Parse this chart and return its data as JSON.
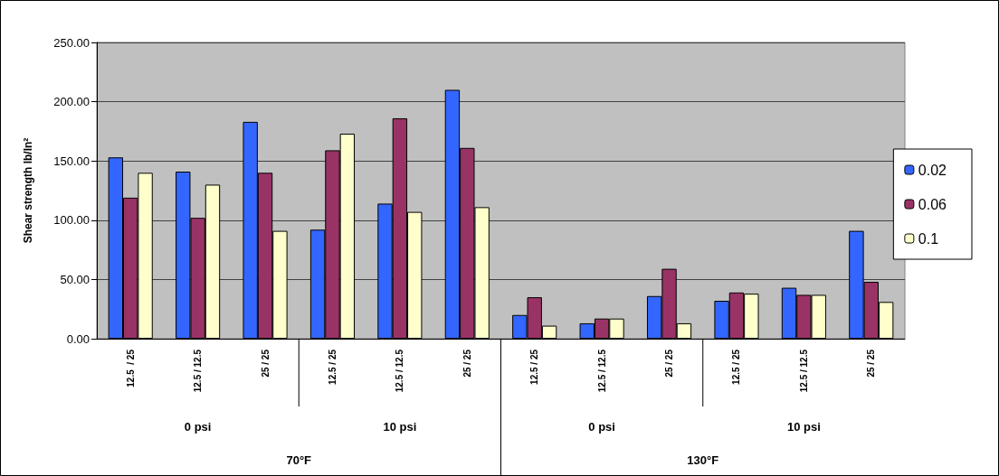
{
  "chart_data": {
    "type": "bar",
    "ylabel": "Shear strength lb/In²",
    "categories": [
      "12.5  / 25",
      "12.5 / 12.5",
      "25 / 25",
      "12.5 / 25",
      "12.5 / 12.5",
      "25 / 25",
      "12.5 / 25",
      "12.5 / 12.5",
      "25 / 25",
      "12.5 / 25",
      "12.5 / 12.5",
      "25 / 25"
    ],
    "series": [
      {
        "name": "0.02",
        "color": "#3366ff",
        "values": [
          153,
          141,
          183,
          92,
          114,
          210,
          20,
          13,
          36,
          32,
          43,
          91
        ]
      },
      {
        "name": "0.06",
        "color": "#993366",
        "values": [
          119,
          102,
          140,
          159,
          186,
          161,
          35,
          17,
          59,
          39,
          37,
          48
        ]
      },
      {
        "name": "0.1",
        "color": "#ffffcc",
        "values": [
          140,
          130,
          91,
          173,
          107,
          111,
          11,
          17,
          13,
          38,
          37,
          31
        ]
      }
    ],
    "ylim": [
      0,
      250
    ],
    "yticks": [
      {
        "value": 0,
        "label": "0.00"
      },
      {
        "value": 50,
        "label": "50.00"
      },
      {
        "value": 100,
        "label": "100.00"
      },
      {
        "value": 150,
        "label": "150.00"
      },
      {
        "value": 200,
        "label": "200.00"
      },
      {
        "value": 250,
        "label": "250.00"
      }
    ],
    "grid": "y",
    "legend": "right",
    "annotations": [
      "0 psi",
      "10 psi",
      "0 psi",
      "10 psi",
      "70°F",
      "130°F"
    ]
  }
}
